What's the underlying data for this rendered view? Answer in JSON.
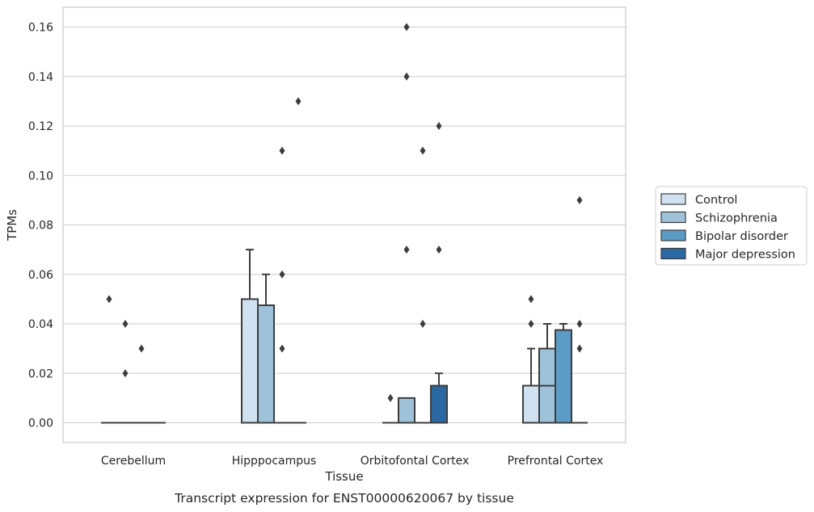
{
  "chart_data": {
    "type": "box",
    "caption": "Transcript expression for ENST00000620067 by tissue",
    "xlabel": "Tissue",
    "ylabel": "TPMs",
    "ylim": [
      -0.008,
      0.168
    ],
    "yticks": [
      0.0,
      0.02,
      0.04,
      0.06,
      0.08,
      0.1,
      0.12,
      0.14,
      0.16
    ],
    "ytick_labels": [
      "0.00",
      "0.02",
      "0.04",
      "0.06",
      "0.08",
      "0.10",
      "0.12",
      "0.14",
      "0.16"
    ],
    "grid": true,
    "legend_position": "right",
    "categories": [
      "Cerebellum",
      "Hipppocampus",
      "Orbitofontal Cortex",
      "Prefrontal Cortex"
    ],
    "series": [
      {
        "name": "Control",
        "color": "#d0e1f2",
        "boxes": [
          {
            "q1": 0.0,
            "median": 0.0,
            "q3": 0.0,
            "whisker_low": 0.0,
            "whisker_high": 0.0,
            "outliers": [
              0.05
            ]
          },
          {
            "q1": 0.0,
            "median": 0.0,
            "q3": 0.05,
            "whisker_low": 0.0,
            "whisker_high": 0.07,
            "outliers": []
          },
          {
            "q1": 0.0,
            "median": 0.0,
            "q3": 0.0,
            "whisker_low": 0.0,
            "whisker_high": 0.0,
            "outliers": [
              0.01
            ]
          },
          {
            "q1": 0.0,
            "median": 0.0,
            "q3": 0.015,
            "whisker_low": 0.0,
            "whisker_high": 0.03,
            "outliers": [
              0.04,
              0.05
            ]
          }
        ]
      },
      {
        "name": "Schizophrenia",
        "color": "#9dc2da",
        "boxes": [
          {
            "q1": 0.0,
            "median": 0.0,
            "q3": 0.0,
            "whisker_low": 0.0,
            "whisker_high": 0.0,
            "outliers": [
              0.02,
              0.04
            ]
          },
          {
            "q1": 0.0,
            "median": 0.0,
            "q3": 0.0475,
            "whisker_low": 0.0,
            "whisker_high": 0.06,
            "outliers": []
          },
          {
            "q1": 0.0,
            "median": 0.0,
            "q3": 0.01,
            "whisker_low": 0.0,
            "whisker_high": 0.01,
            "outliers": [
              0.07,
              0.14,
              0.16
            ]
          },
          {
            "q1": 0.0,
            "median": 0.015,
            "q3": 0.03,
            "whisker_low": 0.0,
            "whisker_high": 0.04,
            "outliers": []
          }
        ]
      },
      {
        "name": "Bipolar disorder",
        "color": "#5c9bc6",
        "boxes": [
          {
            "q1": 0.0,
            "median": 0.0,
            "q3": 0.0,
            "whisker_low": 0.0,
            "whisker_high": 0.0,
            "outliers": [
              0.03
            ]
          },
          {
            "q1": 0.0,
            "median": 0.0,
            "q3": 0.0,
            "whisker_low": 0.0,
            "whisker_high": 0.0,
            "outliers": [
              0.03,
              0.06,
              0.11
            ]
          },
          {
            "q1": 0.0,
            "median": 0.0,
            "q3": 0.0,
            "whisker_low": 0.0,
            "whisker_high": 0.0,
            "outliers": [
              0.04,
              0.11
            ]
          },
          {
            "q1": 0.0,
            "median": 0.0,
            "q3": 0.0375,
            "whisker_low": 0.0,
            "whisker_high": 0.04,
            "outliers": []
          }
        ]
      },
      {
        "name": "Major depression",
        "color": "#2b69a3",
        "boxes": [
          {
            "q1": 0.0,
            "median": 0.0,
            "q3": 0.0,
            "whisker_low": 0.0,
            "whisker_high": 0.0,
            "outliers": []
          },
          {
            "q1": 0.0,
            "median": 0.0,
            "q3": 0.0,
            "whisker_low": 0.0,
            "whisker_high": 0.0,
            "outliers": [
              0.13
            ]
          },
          {
            "q1": 0.0,
            "median": 0.0,
            "q3": 0.015,
            "whisker_low": 0.0,
            "whisker_high": 0.02,
            "outliers": [
              0.07,
              0.12
            ]
          },
          {
            "q1": 0.0,
            "median": 0.0,
            "q3": 0.0,
            "whisker_low": 0.0,
            "whisker_high": 0.0,
            "outliers": [
              0.03,
              0.04,
              0.09
            ]
          }
        ]
      }
    ]
  }
}
